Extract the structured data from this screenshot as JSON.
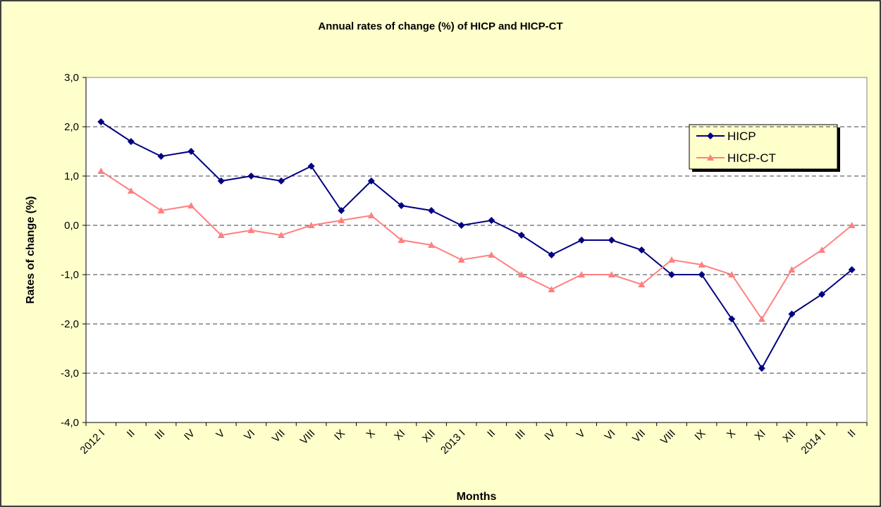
{
  "chart_data": {
    "type": "line",
    "title": "Annual rates of change (%) of HICP and HICP-CT",
    "x_label": "Months",
    "y_label": "Rates of change (%)",
    "categories": [
      "2012 I",
      "II",
      "III",
      "IV",
      "V",
      "VI",
      "VII",
      "VIII",
      "IX",
      "X",
      "XI",
      "XII",
      "2013 I",
      "II",
      "III",
      "IV",
      "V",
      "VI",
      "VII",
      "VIII",
      "IX",
      "X",
      "XI",
      "XII",
      "2014 I",
      "II"
    ],
    "series": [
      {
        "name": "HICP",
        "color": "#000080",
        "marker": "diamond",
        "values": [
          2.1,
          1.7,
          1.4,
          1.5,
          0.9,
          1.0,
          0.9,
          1.2,
          0.3,
          0.9,
          0.4,
          0.3,
          0.0,
          0.1,
          -0.2,
          -0.6,
          -0.3,
          -0.3,
          -0.5,
          -1.0,
          -1.0,
          -1.9,
          -2.9,
          -1.8,
          -1.4,
          -0.9
        ]
      },
      {
        "name": "HICP-CT",
        "color": "#ff8080",
        "marker": "triangle",
        "values": [
          1.1,
          0.7,
          0.3,
          0.4,
          -0.2,
          -0.1,
          -0.2,
          0.0,
          0.1,
          0.2,
          -0.3,
          -0.4,
          -0.7,
          -0.6,
          -1.0,
          -1.3,
          -1.0,
          -1.0,
          -1.2,
          -0.7,
          -0.8,
          -1.0,
          -1.9,
          -0.9,
          -0.5,
          0.0
        ]
      }
    ],
    "ylim": [
      -4,
      3
    ],
    "yticks": [
      {
        "value": -4,
        "label": "-4,0"
      },
      {
        "value": -3,
        "label": "-3,0"
      },
      {
        "value": -2,
        "label": "-2,0"
      },
      {
        "value": -1,
        "label": "-1,0"
      },
      {
        "value": 0,
        "label": "0,0"
      },
      {
        "value": 1,
        "label": "1,0"
      },
      {
        "value": 2,
        "label": "2,0"
      },
      {
        "value": 3,
        "label": "3,0"
      }
    ],
    "grid": true,
    "legend_position": "upper right"
  }
}
